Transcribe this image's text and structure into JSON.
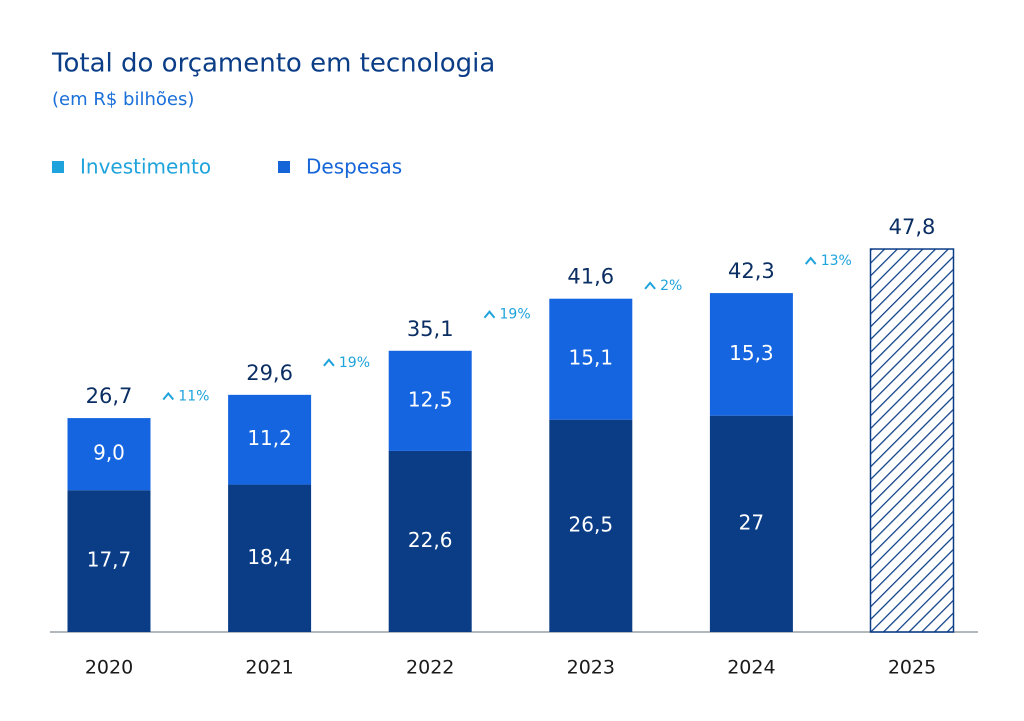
{
  "chart_data": {
    "type": "stacked_bar",
    "title": "Total do orçamento em tecnologia",
    "subtitle": "(em R$ bilhões)",
    "categories": [
      "2020",
      "2021",
      "2022",
      "2023",
      "2024",
      "2025"
    ],
    "series": [
      {
        "name": "Despesas",
        "color": "#0b3d87",
        "legend_color": "#1565d8",
        "values": [
          17.7,
          18.4,
          22.6,
          26.5,
          27,
          null
        ],
        "value_labels": [
          "17,7",
          "18,4",
          "22,6",
          "26,5",
          "27",
          null
        ]
      },
      {
        "name": "Investimento",
        "color": "#1565e0",
        "legend_color": "#1fa3dc",
        "values": [
          9.0,
          11.2,
          12.5,
          15.1,
          15.3,
          null
        ],
        "value_labels": [
          "9,0",
          "11,2",
          "12,5",
          "15,1",
          "15,3",
          null
        ]
      }
    ],
    "totals": {
      "values": [
        26.7,
        29.6,
        35.1,
        41.6,
        42.3,
        47.8
      ],
      "value_labels": [
        "26,7",
        "29,6",
        "35,1",
        "41,6",
        "42,3",
        "47,8"
      ]
    },
    "growth": {
      "values": [
        11,
        19,
        19,
        2,
        13
      ],
      "value_labels": [
        "11%",
        "19%",
        "19%",
        "2%",
        "13%"
      ]
    },
    "hatched_color": "#0b3d87",
    "ylim": [
      0,
      50
    ]
  }
}
